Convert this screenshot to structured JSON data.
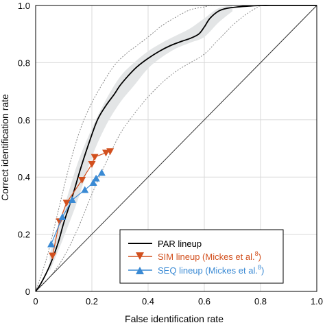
{
  "chart_data": {
    "type": "line",
    "xlabel": "False identification rate",
    "ylabel": "Correct identification rate",
    "xlim": [
      0,
      1
    ],
    "ylim": [
      0,
      1
    ],
    "x_ticks": [
      "0",
      "0.2",
      "0.4",
      "0.6",
      "0.8",
      "1.0"
    ],
    "y_ticks": [
      "0",
      "0.2",
      "0.4",
      "0.6",
      "0.8",
      "1.0"
    ],
    "x_tick_values": [
      0,
      0.2,
      0.4,
      0.6,
      0.8,
      1.0
    ],
    "y_tick_values": [
      0,
      0.2,
      0.4,
      0.6,
      0.8,
      1.0
    ],
    "grid": true,
    "legend_position": "bottom-right",
    "colors": {
      "par": "#000000",
      "sim": "#d2501e",
      "seq": "#3a8ad4",
      "band": "#e3e5e6",
      "confidence_dotted": "#888888",
      "chance": "#333333"
    },
    "series": [
      {
        "name": "PAR lineup",
        "kind": "curve",
        "x": [
          0.0,
          0.02,
          0.05,
          0.08,
          0.1,
          0.13,
          0.16,
          0.19,
          0.22,
          0.25,
          0.28,
          0.3,
          0.33,
          0.36,
          0.4,
          0.44,
          0.48,
          0.52,
          0.55,
          0.58,
          0.6,
          0.62,
          0.65,
          0.68,
          0.72,
          0.76,
          0.8,
          0.85,
          0.9,
          0.95,
          1.0
        ],
        "y": [
          0.0,
          0.03,
          0.09,
          0.17,
          0.24,
          0.33,
          0.43,
          0.52,
          0.6,
          0.65,
          0.69,
          0.72,
          0.755,
          0.785,
          0.815,
          0.84,
          0.86,
          0.875,
          0.885,
          0.9,
          0.925,
          0.955,
          0.98,
          0.99,
          0.995,
          0.998,
          1.0,
          1.0,
          1.0,
          1.0,
          1.0
        ]
      },
      {
        "name": "SIM lineup (Mickes et al.8)",
        "label": "SIM lineup (Mickes et al.",
        "superscript": "8",
        "label_end": ")",
        "kind": "markers-down",
        "x": [
          0.06,
          0.085,
          0.11,
          0.165,
          0.2,
          0.21,
          0.25,
          0.265
        ],
        "y": [
          0.125,
          0.245,
          0.31,
          0.39,
          0.445,
          0.47,
          0.485,
          0.49
        ]
      },
      {
        "name": "SEQ lineup (Mickes et al.8)",
        "label": "SEQ lineup (Mickes et al.",
        "superscript": "8",
        "label_end": ")",
        "kind": "markers-up",
        "x": [
          0.055,
          0.095,
          0.13,
          0.175,
          0.205,
          0.215,
          0.235
        ],
        "y": [
          0.165,
          0.26,
          0.32,
          0.355,
          0.38,
          0.395,
          0.415
        ]
      },
      {
        "name": "chance",
        "kind": "reference",
        "x": [
          0,
          1
        ],
        "y": [
          0,
          1
        ]
      }
    ],
    "band": {
      "x": [
        0.05,
        0.1,
        0.15,
        0.2,
        0.25,
        0.3,
        0.35,
        0.4,
        0.45,
        0.5,
        0.55,
        0.6,
        0.65,
        0.7
      ],
      "upper": [
        0.13,
        0.29,
        0.45,
        0.57,
        0.67,
        0.75,
        0.8,
        0.84,
        0.87,
        0.895,
        0.92,
        0.955,
        0.99,
        1.0
      ],
      "lower": [
        0.07,
        0.19,
        0.32,
        0.47,
        0.58,
        0.66,
        0.72,
        0.78,
        0.82,
        0.85,
        0.87,
        0.89,
        0.94,
        0.98
      ]
    },
    "dotted_bounds": {
      "upper_x": [
        0.0,
        0.04,
        0.08,
        0.12,
        0.16,
        0.2,
        0.24,
        0.28,
        0.32,
        0.36,
        0.4,
        0.45,
        0.5,
        0.55,
        0.6,
        0.62,
        0.65
      ],
      "upper_y": [
        0.0,
        0.12,
        0.28,
        0.44,
        0.57,
        0.66,
        0.73,
        0.79,
        0.83,
        0.86,
        0.89,
        0.93,
        0.96,
        0.985,
        0.995,
        1.0,
        1.0
      ],
      "lower_x": [
        0.0,
        0.05,
        0.1,
        0.15,
        0.2,
        0.25,
        0.3,
        0.35,
        0.4,
        0.45,
        0.5,
        0.55,
        0.6,
        0.65,
        0.7,
        0.75,
        0.8
      ],
      "lower_y": [
        0.0,
        0.05,
        0.12,
        0.22,
        0.34,
        0.45,
        0.55,
        0.62,
        0.68,
        0.73,
        0.77,
        0.8,
        0.83,
        0.88,
        0.93,
        0.97,
        1.0
      ]
    }
  }
}
